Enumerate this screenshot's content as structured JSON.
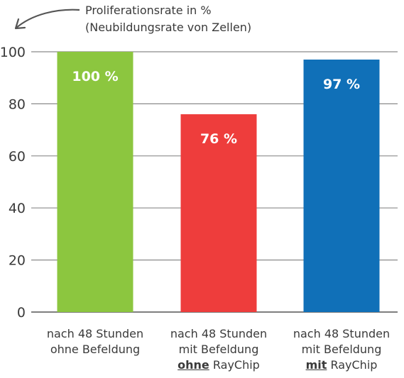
{
  "chart_data": {
    "type": "bar",
    "ylabel": [
      "Proliferationsrate in %",
      "(Neubildungsrate von Zellen)"
    ],
    "ylim": [
      0,
      100
    ],
    "yticks": [
      0,
      20,
      40,
      60,
      80,
      100
    ],
    "grid": true,
    "categories": [
      {
        "lines": [
          "nach 48 Stunden",
          "ohne Befeldung"
        ],
        "emph": null,
        "suffix": null
      },
      {
        "lines": [
          "nach 48 Stunden",
          "mit Befeldung"
        ],
        "emph": "ohne",
        "suffix": " RayChip"
      },
      {
        "lines": [
          "nach 48 Stunden",
          "mit Befeldung"
        ],
        "emph": "mit",
        "suffix": " RayChip"
      }
    ],
    "values": [
      100,
      76,
      97
    ],
    "data_labels": [
      "100 %",
      "76 %",
      "97 %"
    ],
    "colors": [
      "#8cc63f",
      "#ee3d3c",
      "#1070b8"
    ]
  }
}
